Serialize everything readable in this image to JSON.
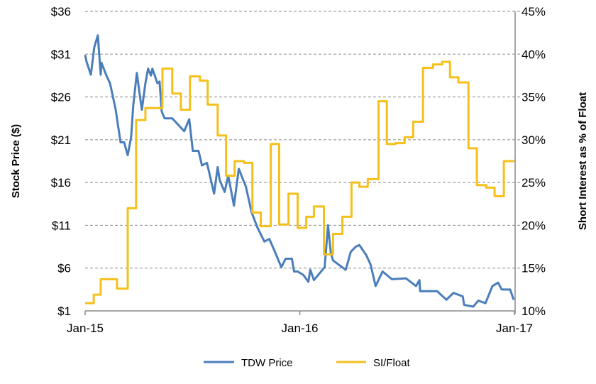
{
  "chart_data": {
    "type": "line",
    "title": "",
    "xlabel": "",
    "ylabel": "Stock Price ($)",
    "y2label": "Short Interest as % of Float",
    "x_unit": "months since Jan-15",
    "xlim": [
      0,
      24
    ],
    "ylim": [
      1,
      36
    ],
    "y2lim": [
      10,
      45
    ],
    "grid": true,
    "legend_position": "bottom",
    "x_ticks": [
      {
        "x": 0,
        "label": "Jan-15"
      },
      {
        "x": 12,
        "label": "Jan-16"
      },
      {
        "x": 24,
        "label": "Jan-17"
      }
    ],
    "y_ticks": [
      {
        "v": 1,
        "label": "$1"
      },
      {
        "v": 6,
        "label": "$6"
      },
      {
        "v": 11,
        "label": "$11"
      },
      {
        "v": 16,
        "label": "$16"
      },
      {
        "v": 21,
        "label": "$21"
      },
      {
        "v": 26,
        "label": "$26"
      },
      {
        "v": 31,
        "label": "$31"
      },
      {
        "v": 36,
        "label": "$36"
      }
    ],
    "y2_ticks": [
      {
        "v": 10,
        "label": "10%"
      },
      {
        "v": 15,
        "label": "15%"
      },
      {
        "v": 20,
        "label": "20%"
      },
      {
        "v": 25,
        "label": "25%"
      },
      {
        "v": 30,
        "label": "30%"
      },
      {
        "v": 35,
        "label": "35%"
      },
      {
        "v": 40,
        "label": "40%"
      },
      {
        "v": 45,
        "label": "45%"
      }
    ],
    "series": [
      {
        "name": "TDW Price",
        "axis": "left",
        "color": "#4a7ebb",
        "step": false,
        "x": [
          0,
          0.08,
          0.32,
          0.51,
          0.71,
          0.87,
          0.91,
          1.19,
          1.39,
          1.7,
          1.98,
          2.18,
          2.38,
          2.57,
          2.69,
          2.89,
          3.05,
          3.17,
          3.37,
          3.52,
          3.68,
          3.76,
          4.04,
          4.16,
          4.28,
          4.44,
          4.87,
          5.27,
          5.54,
          5.82,
          6.02,
          6.34,
          6.53,
          6.81,
          7.21,
          7.41,
          7.52,
          7.8,
          8.0,
          8.32,
          8.59,
          8.99,
          9.31,
          9.62,
          10.02,
          10.3,
          10.57,
          10.97,
          11.21,
          11.56,
          11.68,
          11.88,
          12.2,
          12.48,
          12.59,
          12.79,
          13.19,
          13.39,
          13.58,
          13.74,
          13.86,
          14.18,
          14.57,
          14.85,
          15.13,
          15.33,
          15.72,
          15.96,
          16.24,
          16.63,
          17.15,
          17.94,
          18.5,
          18.69,
          18.73,
          19.68,
          20.2,
          20.59,
          21.11,
          21.19,
          21.7,
          21.98,
          22.38,
          22.77,
          23.09,
          23.29,
          23.76,
          23.96
        ],
        "values": [
          30.9,
          30.1,
          28.6,
          31.8,
          33.2,
          28.6,
          30.0,
          28.5,
          27.6,
          24.6,
          20.7,
          20.7,
          19.2,
          21.3,
          25.0,
          28.8,
          26.3,
          24.5,
          27.6,
          29.3,
          28.5,
          29.3,
          27.6,
          27.8,
          24.3,
          23.5,
          23.5,
          22.6,
          22.0,
          23.4,
          19.7,
          19.7,
          18.0,
          18.3,
          14.7,
          17.8,
          16.3,
          14.9,
          16.8,
          13.3,
          17.6,
          15.5,
          12.5,
          10.8,
          9.1,
          9.4,
          8.1,
          6.1,
          7.1,
          7.1,
          5.6,
          5.6,
          5.2,
          4.4,
          5.8,
          4.6,
          5.6,
          6.1,
          11.0,
          7.7,
          6.9,
          6.4,
          5.8,
          7.9,
          8.5,
          8.7,
          7.5,
          6.4,
          3.9,
          5.6,
          4.7,
          4.8,
          3.9,
          4.6,
          3.3,
          3.3,
          2.3,
          3.1,
          2.7,
          1.7,
          1.5,
          2.2,
          1.9,
          3.9,
          4.3,
          3.5,
          3.5,
          2.3
        ]
      },
      {
        "name": "SI/Float",
        "axis": "right",
        "color": "#f5c01c",
        "step": true,
        "x": [
          0,
          0.48,
          0.87,
          1.78,
          2.38,
          2.85,
          3.37,
          4.32,
          4.87,
          5.35,
          5.86,
          6.42,
          6.85,
          7.41,
          7.88,
          8.36,
          8.87,
          9.35,
          9.82,
          10.38,
          10.85,
          11.37,
          11.88,
          12.36,
          12.79,
          13.35,
          13.86,
          14.38,
          14.89,
          15.33,
          15.8,
          16.4,
          16.87,
          17.35,
          17.86,
          18.34,
          18.89,
          19.45,
          19.96,
          20.4,
          20.87,
          21.43,
          21.9,
          22.42,
          22.89,
          23.41,
          24
        ],
        "values": [
          10.9,
          11.9,
          13.7,
          12.6,
          22.0,
          32.3,
          33.7,
          38.3,
          35.4,
          33.5,
          37.4,
          36.9,
          34.1,
          30.5,
          25.8,
          27.5,
          27.3,
          21.5,
          19.9,
          29.5,
          20.1,
          23.7,
          19.7,
          21.0,
          22.2,
          16.6,
          19.0,
          21.0,
          25.0,
          24.5,
          25.4,
          34.5,
          29.5,
          29.6,
          30.3,
          32.1,
          38.4,
          38.8,
          39.1,
          37.3,
          36.7,
          29.0,
          24.7,
          24.4,
          23.4,
          27.5,
          27.5
        ]
      }
    ]
  }
}
